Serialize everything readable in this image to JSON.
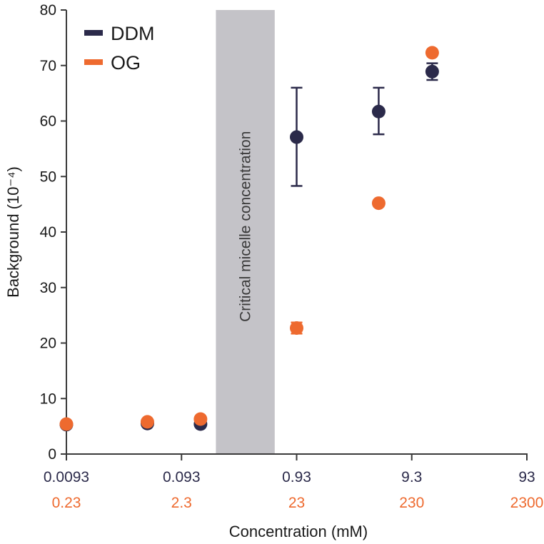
{
  "chart_data": {
    "type": "scatter",
    "xlabel": "Concentration (mM)",
    "ylabel": "Background (10⁻⁴)",
    "ylim": [
      0,
      80
    ],
    "yticks": [
      0,
      10,
      20,
      30,
      40,
      50,
      60,
      70,
      80
    ],
    "x_scale": "log",
    "x_ticks": {
      "DDM": [
        "0.0093",
        "0.093",
        "0.93",
        "9.3",
        "93"
      ],
      "OG": [
        "0.23",
        "2.3",
        "23",
        "230",
        "2300"
      ]
    },
    "x_tick_positions_ddm_mM": [
      0.0093,
      0.093,
      0.93,
      9.3,
      93
    ],
    "band": {
      "label": "Critical micelle concentration",
      "ddm_range_mM": [
        0.185,
        0.6
      ]
    },
    "series": [
      {
        "name": "DDM",
        "color": "#2b2a4a",
        "points": [
          {
            "x_ddm_mM": 0.0093,
            "y": 5.3,
            "err": 0
          },
          {
            "x_ddm_mM": 0.047,
            "y": 5.5,
            "err": 0
          },
          {
            "x_ddm_mM": 0.136,
            "y": 5.4,
            "err": 0
          },
          {
            "x_ddm_mM": 0.93,
            "y": 57.1,
            "err_low": 48.3,
            "err_high": 66.0
          },
          {
            "x_ddm_mM": 4.8,
            "y": 61.7,
            "err_low": 57.6,
            "err_high": 66.0
          },
          {
            "x_ddm_mM": 14.0,
            "y": 68.9,
            "err_low": 67.4,
            "err_high": 70.4
          }
        ]
      },
      {
        "name": "OG",
        "color": "#ee6a2f",
        "points": [
          {
            "x_ddm_mM": 0.0093,
            "y": 5.4,
            "err": 0
          },
          {
            "x_ddm_mM": 0.047,
            "y": 5.8,
            "err": 0
          },
          {
            "x_ddm_mM": 0.136,
            "y": 6.3,
            "err": 0
          },
          {
            "x_ddm_mM": 0.93,
            "y": 22.7,
            "err_low": 21.7,
            "err_high": 23.7
          },
          {
            "x_ddm_mM": 4.8,
            "y": 45.2,
            "err": 0
          },
          {
            "x_ddm_mM": 14.0,
            "y": 72.3,
            "err": 0
          }
        ]
      }
    ],
    "legend": {
      "placement": "top-left",
      "entries": [
        {
          "label": "DDM",
          "color": "#2b2a4a"
        },
        {
          "label": "OG",
          "color": "#ee6a2f"
        }
      ]
    }
  }
}
